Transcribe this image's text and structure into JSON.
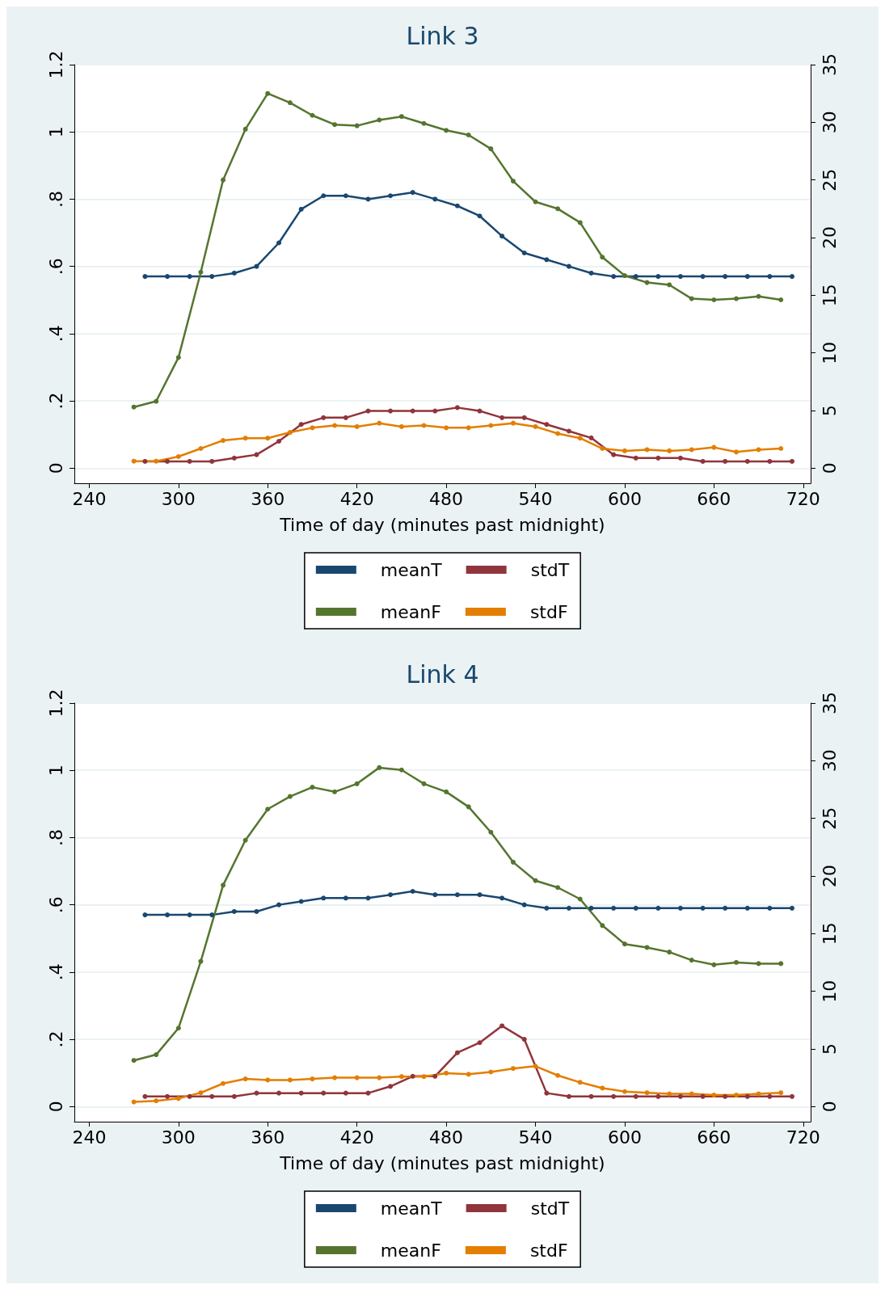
{
  "chart_data": [
    {
      "type": "line",
      "title": "Link 3",
      "xlabel": "Time of day (minutes past midnight)",
      "xlim": [
        230,
        725
      ],
      "xticks": [
        240,
        300,
        360,
        420,
        480,
        540,
        600,
        660,
        720
      ],
      "ylim": [
        -0.045,
        1.2
      ],
      "yticks": [
        {
          "value": 0,
          "label": "0"
        },
        {
          "value": 0.2,
          "label": ".2"
        },
        {
          "value": 0.4,
          "label": ".4"
        },
        {
          "value": 0.6,
          "label": ".6"
        },
        {
          "value": 0.8,
          "label": ".8"
        },
        {
          "value": 1,
          "label": "1"
        },
        {
          "value": 1.2,
          "label": "1.2"
        }
      ],
      "y2lim": [
        -1.3125,
        35
      ],
      "y2ticks": [
        0,
        5,
        10,
        15,
        20,
        25,
        30,
        35
      ],
      "grid": "y",
      "legend": "bottom",
      "marker": "circle",
      "line_style": "solid",
      "series": [
        {
          "name": "meanT",
          "color": "#1a476f",
          "x": [
            277.5,
            292.5,
            307.5,
            322.5,
            337.5,
            352.5,
            367.5,
            382.5,
            397.5,
            412.5,
            427.5,
            442.5,
            457.5,
            472.5,
            487.5,
            502.5,
            517.5,
            532.5,
            547.5,
            562.5,
            577.5,
            592.5,
            607.5,
            622.5,
            637.5,
            652.5,
            667.5,
            682.5,
            697.5,
            712.5
          ],
          "values": [
            0.57,
            0.57,
            0.57,
            0.57,
            0.58,
            0.6,
            0.67,
            0.77,
            0.81,
            0.81,
            0.8,
            0.81,
            0.82,
            0.8,
            0.78,
            0.75,
            0.69,
            0.64,
            0.62,
            0.6,
            0.58,
            0.57,
            0.57,
            0.57,
            0.57,
            0.57,
            0.57,
            0.57,
            0.57,
            0.57
          ]
        },
        {
          "name": "stdT",
          "color": "#90353b",
          "x": [
            277.5,
            292.5,
            307.5,
            322.5,
            337.5,
            352.5,
            367.5,
            382.5,
            397.5,
            412.5,
            427.5,
            442.5,
            457.5,
            472.5,
            487.5,
            502.5,
            517.5,
            532.5,
            547.5,
            562.5,
            577.5,
            592.5,
            607.5,
            622.5,
            637.5,
            652.5,
            667.5,
            682.5,
            697.5,
            712.5
          ],
          "values": [
            0.02,
            0.02,
            0.02,
            0.02,
            0.03,
            0.04,
            0.08,
            0.13,
            0.15,
            0.15,
            0.17,
            0.17,
            0.17,
            0.17,
            0.18,
            0.17,
            0.15,
            0.15,
            0.13,
            0.11,
            0.09,
            0.04,
            0.03,
            0.03,
            0.03,
            0.02,
            0.02,
            0.02,
            0.02,
            0.02
          ]
        },
        {
          "name": "meanF",
          "color": "#55752f",
          "axis": "y2",
          "x": [
            270,
            285,
            300,
            315,
            330,
            345,
            360,
            375,
            390,
            405,
            420,
            435,
            450,
            465,
            480,
            495,
            510,
            525,
            540,
            555,
            570,
            585,
            600,
            615,
            630,
            645,
            660,
            675,
            690,
            705
          ],
          "values": [
            5.3,
            5.8,
            9.6,
            17.0,
            25.0,
            29.4,
            32.5,
            31.7,
            30.6,
            29.8,
            29.7,
            30.2,
            30.5,
            29.9,
            29.3,
            28.9,
            27.7,
            24.9,
            23.1,
            22.5,
            21.3,
            18.3,
            16.7,
            16.1,
            15.9,
            14.7,
            14.6,
            14.7,
            14.9,
            14.6
          ]
        },
        {
          "name": "stdF",
          "color": "#e37e00",
          "axis": "y2",
          "x": [
            270,
            285,
            300,
            315,
            330,
            345,
            360,
            375,
            390,
            405,
            420,
            435,
            450,
            465,
            480,
            495,
            510,
            525,
            540,
            555,
            570,
            585,
            600,
            615,
            630,
            645,
            660,
            675,
            690,
            705
          ],
          "values": [
            0.6,
            0.6,
            1.0,
            1.7,
            2.4,
            2.6,
            2.6,
            3.1,
            3.5,
            3.7,
            3.6,
            3.9,
            3.6,
            3.7,
            3.5,
            3.5,
            3.7,
            3.9,
            3.6,
            3.0,
            2.6,
            1.7,
            1.5,
            1.6,
            1.5,
            1.6,
            1.8,
            1.4,
            1.6,
            1.7
          ]
        }
      ]
    },
    {
      "type": "line",
      "title": "Link 4",
      "xlabel": "Time of day (minutes past midnight)",
      "xlim": [
        230,
        725
      ],
      "xticks": [
        240,
        300,
        360,
        420,
        480,
        540,
        600,
        660,
        720
      ],
      "ylim": [
        -0.045,
        1.2
      ],
      "yticks": [
        {
          "value": 0,
          "label": "0"
        },
        {
          "value": 0.2,
          "label": ".2"
        },
        {
          "value": 0.4,
          "label": ".4"
        },
        {
          "value": 0.6,
          "label": ".6"
        },
        {
          "value": 0.8,
          "label": ".8"
        },
        {
          "value": 1,
          "label": "1"
        },
        {
          "value": 1.2,
          "label": "1.2"
        }
      ],
      "y2lim": [
        -1.3125,
        35
      ],
      "y2ticks": [
        0,
        5,
        10,
        15,
        20,
        25,
        30,
        35
      ],
      "grid": "y",
      "legend": "bottom",
      "marker": "circle",
      "line_style": "solid",
      "series": [
        {
          "name": "meanT",
          "color": "#1a476f",
          "x": [
            277.5,
            292.5,
            307.5,
            322.5,
            337.5,
            352.5,
            367.5,
            382.5,
            397.5,
            412.5,
            427.5,
            442.5,
            457.5,
            472.5,
            487.5,
            502.5,
            517.5,
            532.5,
            547.5,
            562.5,
            577.5,
            592.5,
            607.5,
            622.5,
            637.5,
            652.5,
            667.5,
            682.5,
            697.5,
            712.5
          ],
          "values": [
            0.57,
            0.57,
            0.57,
            0.57,
            0.58,
            0.58,
            0.6,
            0.61,
            0.62,
            0.62,
            0.62,
            0.63,
            0.64,
            0.63,
            0.63,
            0.63,
            0.62,
            0.6,
            0.59,
            0.59,
            0.59,
            0.59,
            0.59,
            0.59,
            0.59,
            0.59,
            0.59,
            0.59,
            0.59,
            0.59
          ]
        },
        {
          "name": "stdT",
          "color": "#90353b",
          "x": [
            277.5,
            292.5,
            307.5,
            322.5,
            337.5,
            352.5,
            367.5,
            382.5,
            397.5,
            412.5,
            427.5,
            442.5,
            457.5,
            472.5,
            487.5,
            502.5,
            517.5,
            532.5,
            547.5,
            562.5,
            577.5,
            592.5,
            607.5,
            622.5,
            637.5,
            652.5,
            667.5,
            682.5,
            697.5,
            712.5
          ],
          "values": [
            0.03,
            0.03,
            0.03,
            0.03,
            0.03,
            0.04,
            0.04,
            0.04,
            0.04,
            0.04,
            0.04,
            0.06,
            0.09,
            0.09,
            0.16,
            0.19,
            0.24,
            0.2,
            0.04,
            0.03,
            0.03,
            0.03,
            0.03,
            0.03,
            0.03,
            0.03,
            0.03,
            0.03,
            0.03,
            0.03
          ]
        },
        {
          "name": "meanF",
          "color": "#55752f",
          "axis": "y2",
          "x": [
            270,
            285,
            300,
            315,
            330,
            345,
            360,
            375,
            390,
            405,
            420,
            435,
            450,
            465,
            480,
            495,
            510,
            525,
            540,
            555,
            570,
            585,
            600,
            615,
            630,
            645,
            660,
            675,
            690,
            705
          ],
          "values": [
            4.0,
            4.5,
            6.8,
            12.6,
            19.2,
            23.1,
            25.8,
            26.9,
            27.7,
            27.3,
            28.0,
            29.4,
            29.2,
            28.0,
            27.3,
            26.0,
            23.8,
            21.2,
            19.6,
            19.0,
            18.0,
            15.7,
            14.1,
            13.8,
            13.4,
            12.7,
            12.3,
            12.5,
            12.4,
            12.4
          ]
        },
        {
          "name": "stdF",
          "color": "#e37e00",
          "axis": "y2",
          "x": [
            270,
            285,
            300,
            315,
            330,
            345,
            360,
            375,
            390,
            405,
            420,
            435,
            450,
            465,
            480,
            495,
            510,
            525,
            540,
            555,
            570,
            585,
            600,
            615,
            630,
            645,
            660,
            675,
            690,
            705
          ],
          "values": [
            0.4,
            0.5,
            0.7,
            1.2,
            2.0,
            2.4,
            2.3,
            2.3,
            2.4,
            2.5,
            2.5,
            2.5,
            2.6,
            2.6,
            2.9,
            2.8,
            3.0,
            3.3,
            3.5,
            2.7,
            2.1,
            1.6,
            1.3,
            1.2,
            1.1,
            1.1,
            1.0,
            1.0,
            1.1,
            1.2
          ]
        }
      ]
    }
  ]
}
